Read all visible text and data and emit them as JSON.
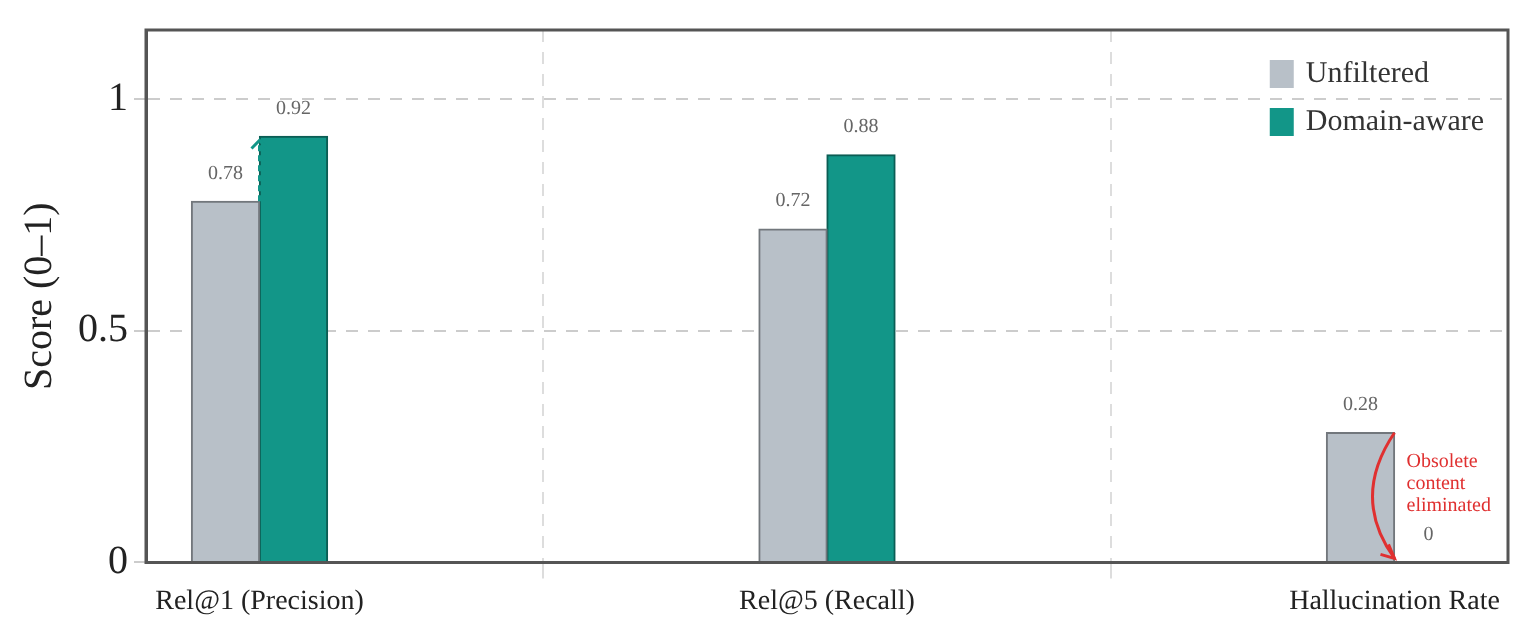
{
  "chart_data": {
    "type": "bar",
    "ylabel": "Score (0–1)",
    "categories": [
      "Rel@1 (Precision)",
      "Rel@5 (Recall)",
      "Hallucination Rate"
    ],
    "series": [
      {
        "name": "Unfiltered",
        "color": "#b8c0c8",
        "values": [
          0.78,
          0.72,
          0.28
        ]
      },
      {
        "name": "Domain-aware",
        "color": "#129688",
        "values": [
          0.92,
          0.88,
          0
        ]
      }
    ],
    "ylim": [
      0,
      1.15
    ],
    "yticks": [
      0,
      0.5,
      1
    ],
    "grid": true,
    "legend": "top right",
    "data_labels": true,
    "annotations": [
      {
        "text": "Obsolete content eliminated",
        "x": "Hallucination Rate",
        "y": 0.17
      }
    ]
  }
}
